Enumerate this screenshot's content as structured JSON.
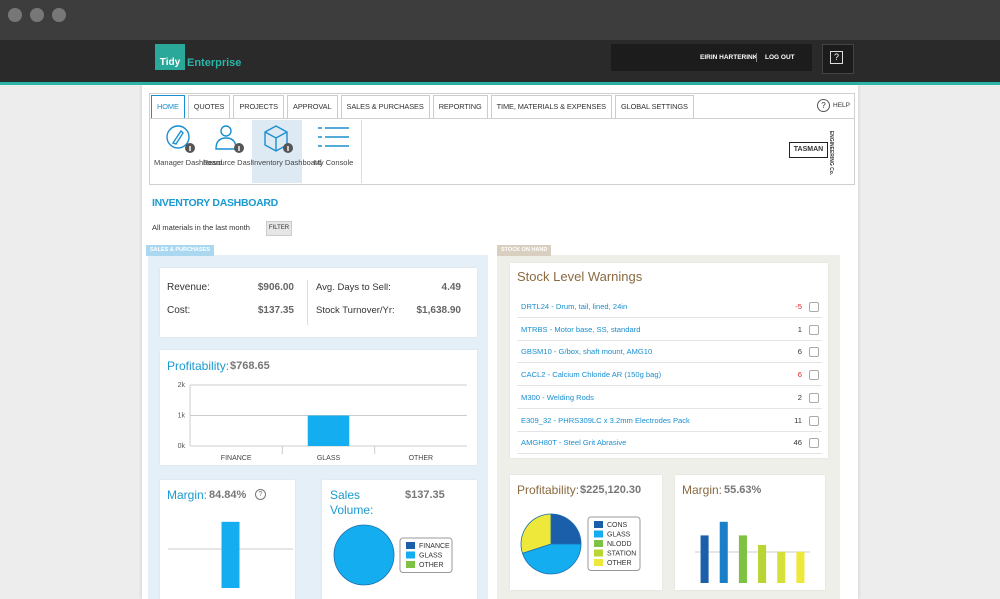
{
  "header": {
    "logo_mark": "Tidy",
    "logo_name": "Enterprise",
    "user": "EIRIN HARTERINK",
    "logout": "LOG OUT",
    "help_icon": "?"
  },
  "nav": {
    "tabs": [
      "HOME",
      "QUOTES",
      "PROJECTS",
      "APPROVAL",
      "SALES & PURCHASES",
      "REPORTING",
      "TIME, MATERIALS & EXPENSES",
      "GLOBAL SETTINGS"
    ],
    "active_tab": 0,
    "help_icon": "?",
    "help": "HELP"
  },
  "toolbar": {
    "items": [
      "Manager Dashboard",
      "Resource Dashboard",
      "Inventory Dashboard",
      "My Console"
    ],
    "active_item": 2
  },
  "brand": {
    "name": "TASMAN",
    "tagline": "ENGINEERING Co."
  },
  "dashboard": {
    "title": "INVENTORY DASHBOARD",
    "filter_text": "All materials in the last month",
    "filter_button": "FILTER"
  },
  "sales": {
    "tag": "SALES & PURCHASES",
    "stats": [
      {
        "label": "Revenue:",
        "value": "$906.00"
      },
      {
        "label": "Cost:",
        "value": "$137.35"
      },
      {
        "label": "Avg. Days to Sell:",
        "value": "4.49"
      },
      {
        "label": "Stock Turnover/Yr:",
        "value": "$1,638.90"
      }
    ],
    "margin_help": "?"
  },
  "stock": {
    "tag": "STOCK ON HAND",
    "title": "Stock Level Warnings",
    "items": [
      {
        "name": "DRTL24 - Drum, tail, lined, 24in",
        "qty": -5,
        "alert": true
      },
      {
        "name": "MTRBS - Motor base, SS, standard",
        "qty": 1,
        "alert": false
      },
      {
        "name": "GBSM10 - G/box, shaft mount, AMG10",
        "qty": 6,
        "alert": false
      },
      {
        "name": "CACL2 - Calcium Chloride AR (150g bag)",
        "qty": 6,
        "alert": true
      },
      {
        "name": "M300 - Welding Rods",
        "qty": 2,
        "alert": false
      },
      {
        "name": "E309_32 - PHRS309LC x 3.2mm Electrodes Pack",
        "qty": 11,
        "alert": false
      },
      {
        "name": "AMGH80T - Steel Grit Abrasive",
        "qty": 46,
        "alert": false
      }
    ]
  },
  "chart_data": [
    {
      "type": "bar",
      "title": "Profitability:",
      "subtitle": "$768.65",
      "categories": [
        "FINANCE",
        "GLASS",
        "OTHER"
      ],
      "values": [
        0,
        1000,
        0
      ],
      "color": "#14aef0",
      "ylim": [
        0,
        2000
      ],
      "yticks": [
        {
          "value": 0,
          "label": "0k"
        },
        {
          "value": 1000,
          "label": "1k"
        },
        {
          "value": 2000,
          "label": "2k"
        }
      ],
      "grid": true
    },
    {
      "type": "bar",
      "title": "Margin:",
      "subtitle": "84.84%",
      "categories": [
        null
      ],
      "values": [
        84.84
      ],
      "color": "#14aef0",
      "ylim": [
        0,
        100
      ]
    },
    {
      "type": "pie",
      "title": "Sales Volume:",
      "subtitle": "$137.35",
      "categories": [
        "FINANCE",
        "GLASS",
        "OTHER"
      ],
      "values": [
        0,
        100,
        0
      ],
      "colors": [
        "#1b5faa",
        "#14aef0",
        "#7dc242"
      ]
    },
    {
      "type": "pie",
      "title": "Profitability:",
      "subtitle": "$225,120.30",
      "categories": [
        "CONS",
        "GLASS",
        "NLODD",
        "STATION",
        "OTHER"
      ],
      "values": [
        25,
        45,
        0,
        0,
        30
      ],
      "colors": [
        "#1b5faa",
        "#14aef0",
        "#7dc242",
        "#b9d534",
        "#eee83a"
      ]
    },
    {
      "type": "bar",
      "title": "Margin:",
      "subtitle": "55.63%",
      "categories": [
        null,
        null,
        null,
        null,
        null,
        null
      ],
      "values": [
        70,
        90,
        70,
        56,
        46,
        46
      ],
      "colors": [
        "#1b5faa",
        "#1b7fc8",
        "#7dc242",
        "#b9d534",
        "#d6e03a",
        "#eee83a"
      ],
      "ylim": [
        0,
        100
      ]
    }
  ]
}
